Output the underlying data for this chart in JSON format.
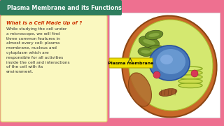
{
  "title": "Plasma Membrane and its Functions",
  "title_bg": "#2e7d5e",
  "title_color": "#ffffff",
  "bg_color": "#ee7090",
  "left_box_bg": "#faf8c0",
  "left_box_border": "#e0d870",
  "cell_bg": "#f8f0e8",
  "heading": "What is a Cell Made Up of ?",
  "heading_color": "#cc3300",
  "body_text": "While studying the cell under\na microscope, we will find\nthree common features in\nalmost every cell: plasma\nmembrane, nucleus and\ncytoplasm which are\nresponsible for all activities\ninside the cell and interactions\nof the cell with its\nenvironment.",
  "body_color": "#333333",
  "label_text": "Plasma membrane",
  "label_bg": "#f0e000",
  "label_color": "#000000",
  "right_bg": "#f5d0dc"
}
